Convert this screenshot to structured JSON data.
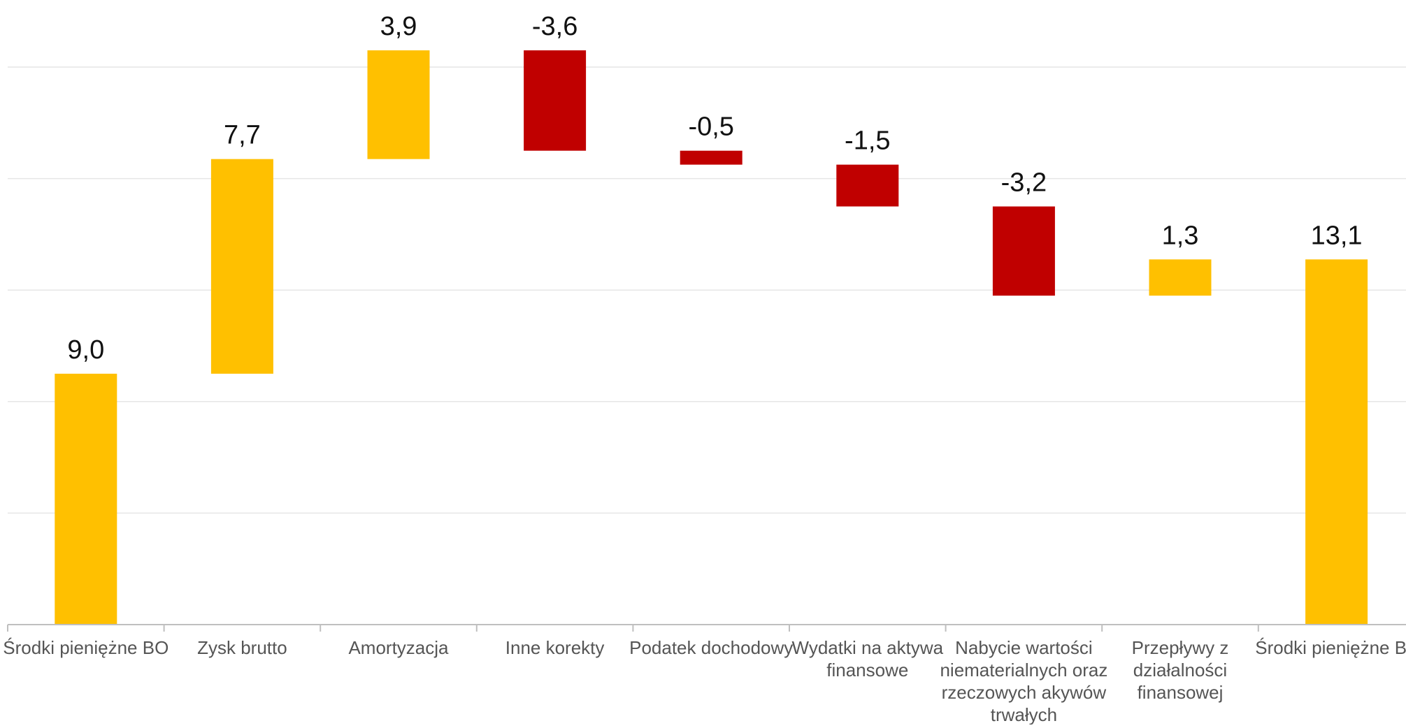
{
  "chart_data": {
    "type": "waterfall",
    "categories": [
      "Środki pieniężne BO",
      "Zysk brutto",
      "Amortyzacja",
      "Inne korekty",
      "Podatek dochodowy",
      "Wydatki na aktywa finansowe",
      "Nabycie wartości niematerialnych oraz rzeczowych akywów trwałych",
      "Przepływy z działalności finansowej",
      "Środki pieniężne BZ"
    ],
    "category_lines": [
      [
        "Środki pieniężne BO"
      ],
      [
        "Zysk brutto"
      ],
      [
        "Amortyzacja"
      ],
      [
        "Inne korekty"
      ],
      [
        "Podatek dochodowy"
      ],
      [
        "Wydatki na aktywa",
        "finansowe"
      ],
      [
        "Nabycie wartości",
        "niematerialnych oraz",
        "rzeczowych akywów",
        "trwałych"
      ],
      [
        "Przepływy z",
        "działalności",
        "finansowej"
      ],
      [
        "Środki pieniężne BZ"
      ]
    ],
    "values": [
      9.0,
      7.7,
      3.9,
      -3.6,
      -0.5,
      -1.5,
      -3.2,
      1.3,
      13.1
    ],
    "value_labels": [
      "9,0",
      "7,7",
      "3,9",
      "-3,6",
      "-0,5",
      "-1,5",
      "-3,2",
      "1,3",
      "13,1"
    ],
    "is_total": [
      true,
      false,
      false,
      false,
      false,
      false,
      false,
      false,
      true
    ],
    "ylim": [
      0,
      20
    ],
    "grid": true,
    "colors": {
      "increase": "#FFC000",
      "decrease": "#C00000",
      "total": "#FFC000",
      "grid": "#E6E6E6",
      "axis": "#BFBFBF"
    }
  }
}
